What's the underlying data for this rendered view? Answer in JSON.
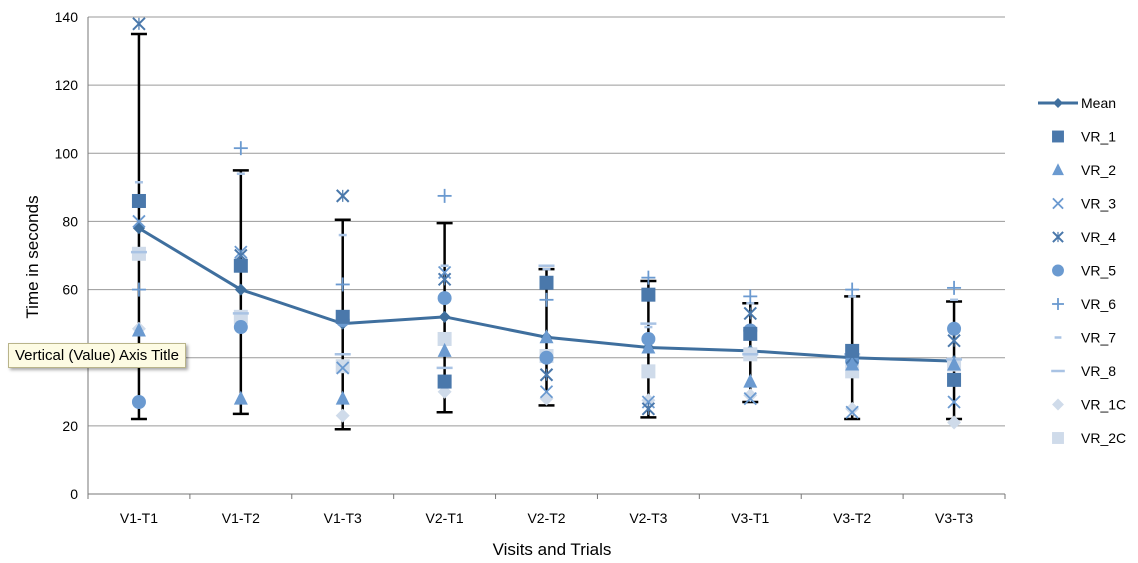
{
  "chart_data": {
    "type": "line",
    "xlabel": "Visits and Trials",
    "ylabel": "Time in seconds",
    "ylim": [
      0,
      140
    ],
    "yticks": [
      0,
      20,
      40,
      60,
      80,
      100,
      120,
      140
    ],
    "grid": true,
    "legend_position": "right",
    "categories": [
      "V1-T1",
      "V1-T2",
      "V1-T3",
      "V2-T1",
      "V2-T2",
      "V2-T3",
      "V3-T1",
      "V3-T2",
      "V3-T3"
    ],
    "mean": {
      "name": "Mean",
      "values": [
        78,
        60,
        50,
        52,
        46,
        43,
        42,
        40,
        39
      ],
      "error_low": [
        22,
        23.5,
        19,
        24,
        26,
        22.5,
        27,
        22,
        22
      ],
      "error_high": [
        135,
        95,
        80.5,
        79.5,
        66,
        62.5,
        56,
        58,
        56.5
      ]
    },
    "series": [
      {
        "name": "VR_1",
        "marker": "square",
        "values": [
          86,
          67,
          52,
          33,
          62,
          58.5,
          47,
          42,
          33.5
        ]
      },
      {
        "name": "VR_2",
        "marker": "triangle",
        "values": [
          48,
          28,
          28,
          42,
          46,
          43,
          33,
          38,
          38
        ]
      },
      {
        "name": "VR_3",
        "marker": "x",
        "values": [
          80,
          71,
          37,
          65,
          30,
          27,
          28,
          24,
          27
        ]
      },
      {
        "name": "VR_4",
        "marker": "asterisk",
        "values": [
          138,
          70,
          87.5,
          63,
          35,
          25,
          53,
          40,
          45
        ]
      },
      {
        "name": "VR_5",
        "marker": "circle",
        "values": [
          27,
          49,
          51,
          57.5,
          40,
          45.5,
          48,
          39,
          48.5
        ]
      },
      {
        "name": "VR_6",
        "marker": "plus",
        "values": [
          60,
          101.5,
          61.5,
          87.5,
          57,
          63.5,
          58,
          60,
          60.5
        ]
      },
      {
        "name": "VR_7",
        "marker": "dash-short",
        "values": [
          91.5,
          94,
          76,
          67,
          66,
          49,
          56,
          58,
          57
        ]
      },
      {
        "name": "VR_8",
        "marker": "dash",
        "values": [
          71,
          53,
          41,
          37,
          67,
          50,
          41,
          41,
          39.5
        ]
      },
      {
        "name": "VR_1C",
        "marker": "diamond",
        "values": [
          48.5,
          50,
          23,
          30,
          28,
          27.5,
          29,
          25,
          21
        ]
      },
      {
        "name": "VR_2C",
        "marker": "square-light",
        "values": [
          70.5,
          52,
          37.5,
          45.5,
          40.5,
          36,
          41,
          36,
          38
        ]
      }
    ],
    "colors": {
      "mean_line": "#3f6f9e",
      "dark_marker": "#4a78ab",
      "mid_marker": "#6b9ad0",
      "light_marker": "#a9c3e4",
      "pale_marker": "#cfdbea",
      "grid": "#9a9a9a",
      "error_bar": "#000000"
    }
  },
  "tooltip": {
    "text": "Vertical (Value) Axis Title"
  }
}
